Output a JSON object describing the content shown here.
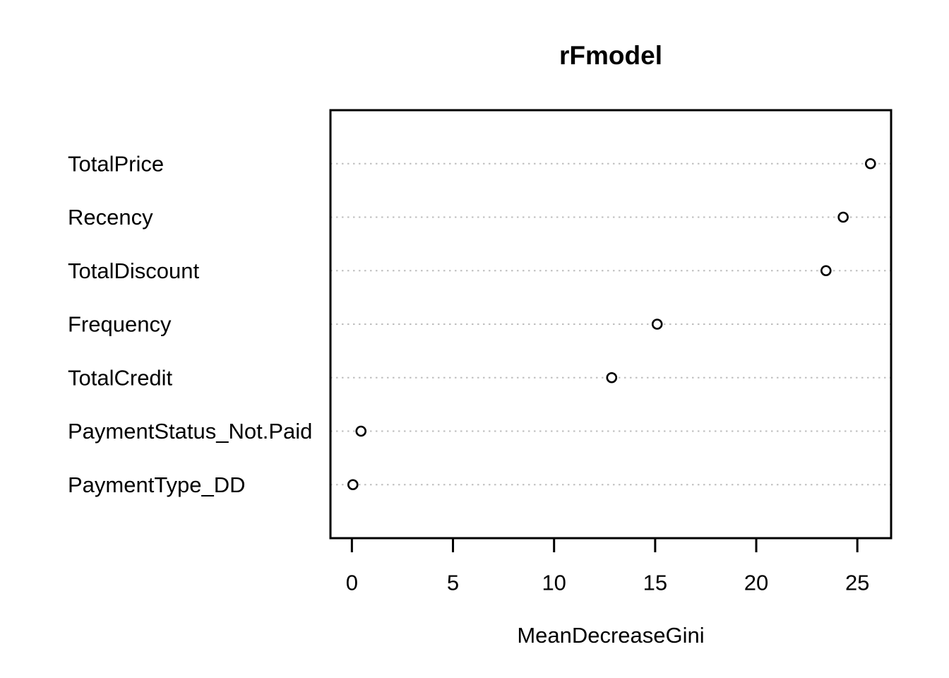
{
  "chart_data": {
    "type": "scatter",
    "title": "rFmodel",
    "xlabel": "MeanDecreaseGini",
    "ylabel": "",
    "categories": [
      "TotalPrice",
      "Recency",
      "TotalDiscount",
      "Frequency",
      "TotalCredit",
      "PaymentStatus_Not.Paid",
      "PaymentType_DD"
    ],
    "values": [
      25.65,
      24.3,
      23.45,
      15.1,
      12.85,
      0.45,
      0.05
    ],
    "x_ticks": [
      0,
      5,
      10,
      15,
      20,
      25
    ],
    "xlim": [
      -1.06,
      26.67
    ],
    "grid": "horizontal-dotted",
    "legend_position": "none",
    "point_shape": "open-circle",
    "colors": {
      "point_stroke": "#000000",
      "gridline": "#bebebe",
      "text": "#000000",
      "axis": "#000000",
      "background": "#ffffff"
    }
  }
}
